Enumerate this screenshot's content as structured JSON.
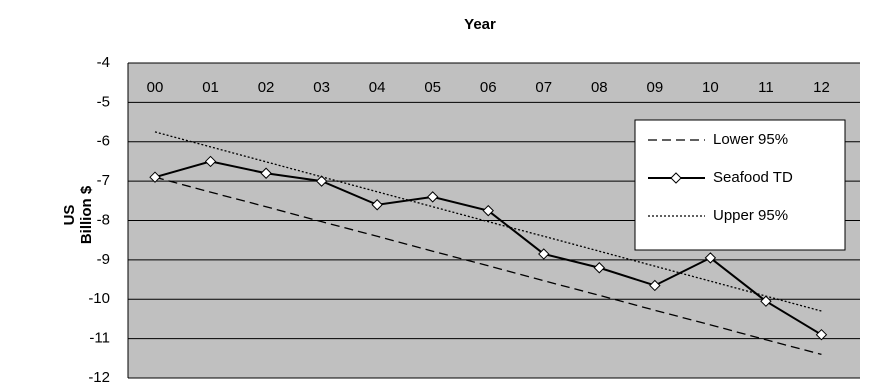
{
  "chart_data": {
    "type": "line",
    "title": "Year",
    "y_label_lines": [
      "US",
      "Billion $"
    ],
    "categories": [
      "00",
      "01",
      "02",
      "03",
      "04",
      "05",
      "06",
      "07",
      "08",
      "09",
      "10",
      "11",
      "12"
    ],
    "series": [
      {
        "name": "Lower 95%",
        "color": "#000000",
        "style": "dashed",
        "values": [
          -6.9,
          -7.28,
          -7.65,
          -8.03,
          -8.4,
          -8.78,
          -9.15,
          -9.53,
          -9.9,
          -10.28,
          -10.65,
          -11.03,
          -11.4
        ]
      },
      {
        "name": "Seafood TD",
        "color": "#000000",
        "style": "solid",
        "marker": "diamond",
        "values": [
          -6.9,
          -6.5,
          -6.8,
          -7.0,
          -7.6,
          -7.4,
          -7.75,
          -8.85,
          -9.2,
          -9.65,
          -8.95,
          -10.05,
          -10.9
        ]
      },
      {
        "name": "Upper 95%",
        "color": "#000000",
        "style": "dotted",
        "values": [
          -5.75,
          -6.13,
          -6.51,
          -6.89,
          -7.27,
          -7.65,
          -8.03,
          -8.4,
          -8.78,
          -9.16,
          -9.54,
          -9.92,
          -10.3
        ]
      }
    ],
    "ylim": [
      -12,
      -4
    ],
    "yticks": [
      -12,
      -11,
      -10,
      -9,
      -8,
      -7,
      -6,
      -5,
      -4
    ],
    "grid": true
  }
}
